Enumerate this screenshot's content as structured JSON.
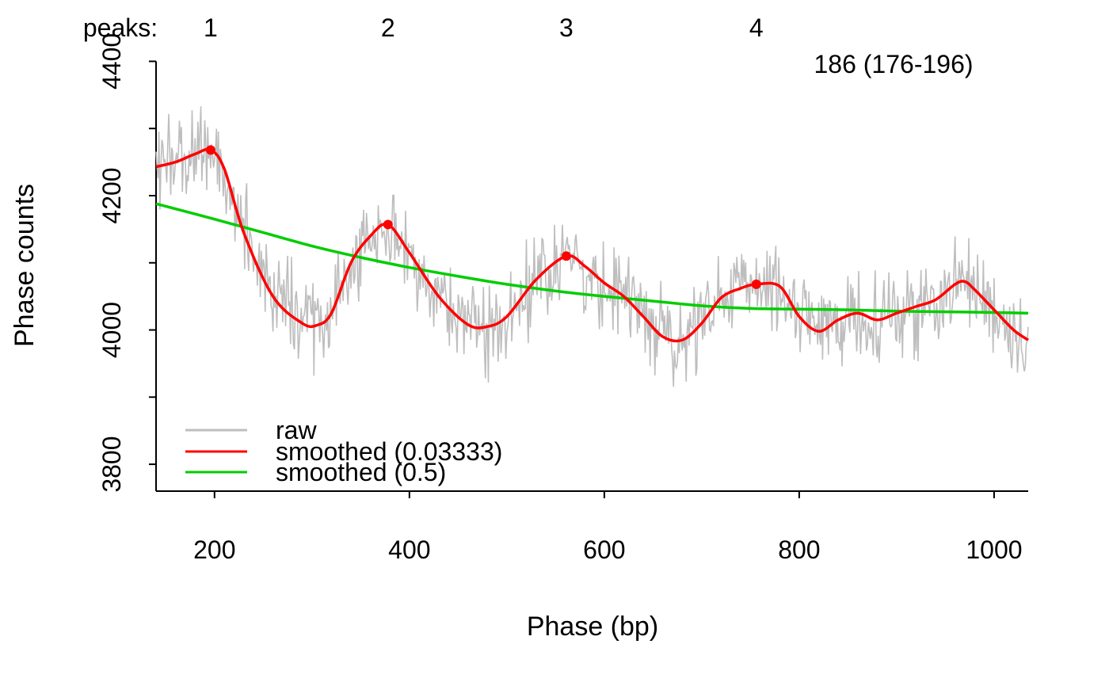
{
  "chart_data": {
    "type": "line",
    "title": "",
    "xlabel": "Phase (bp)",
    "ylabel": "Phase counts",
    "xlim": [
      140,
      1035
    ],
    "ylim": [
      3760,
      4430
    ],
    "x_ticks": [
      200,
      400,
      600,
      800,
      1000
    ],
    "x_tick_labels": [
      "200",
      "400",
      "600",
      "800",
      "1000"
    ],
    "y_ticks": [
      3800,
      3900,
      4000,
      4100,
      4200,
      4300,
      4400
    ],
    "y_tick_labels": [
      "3800",
      "",
      "4000",
      "",
      "4200",
      "",
      "4400"
    ],
    "grid": false,
    "legend_position": "bottom-left",
    "annotation": "186 (176-196)",
    "peaks_header": {
      "label": "peaks:",
      "numbers": [
        "1",
        "2",
        "3",
        "4"
      ],
      "x": [
        196,
        378,
        561,
        756
      ]
    },
    "series": [
      {
        "name": "raw",
        "color": "#BEBEBE",
        "noise_seed": 186,
        "noise_amplitude": 45,
        "description_curve": "smoothed (0.03333)"
      },
      {
        "name": "smoothed (0.03333)",
        "color": "#FF0000",
        "x": [
          140,
          160,
          180,
          196,
          210,
          230,
          260,
          290,
          305,
          320,
          340,
          360,
          378,
          400,
          430,
          460,
          480,
          500,
          530,
          561,
          580,
          600,
          620,
          640,
          660,
          680,
          700,
          720,
          740,
          756,
          780,
          800,
          820,
          840,
          860,
          880,
          900,
          920,
          940,
          960,
          970,
          980,
          1000,
          1020,
          1035
        ],
        "y": [
          4243,
          4250,
          4262,
          4268,
          4240,
          4145,
          4050,
          4010,
          4007,
          4025,
          4100,
          4140,
          4157,
          4115,
          4050,
          4008,
          4005,
          4020,
          4075,
          4110,
          4095,
          4070,
          4050,
          4020,
          3990,
          3985,
          4010,
          4048,
          4062,
          4068,
          4065,
          4020,
          3998,
          4015,
          4025,
          4015,
          4025,
          4035,
          4045,
          4068,
          4072,
          4060,
          4030,
          4000,
          3985
        ]
      },
      {
        "name": "smoothed (0.5)",
        "color": "#00CD00",
        "x": [
          140,
          200,
          250,
          300,
          350,
          400,
          450,
          500,
          550,
          600,
          650,
          700,
          750,
          800,
          850,
          900,
          950,
          1000,
          1035
        ],
        "y": [
          4188,
          4165,
          4145,
          4125,
          4108,
          4093,
          4080,
          4068,
          4058,
          4050,
          4043,
          4036,
          4032,
          4031,
          4030,
          4028,
          4027,
          4026,
          4025
        ]
      }
    ],
    "peak_points": {
      "color": "#FF0000",
      "x": [
        196,
        378,
        561,
        756
      ],
      "y": [
        4268,
        4157,
        4110,
        4068
      ]
    }
  }
}
